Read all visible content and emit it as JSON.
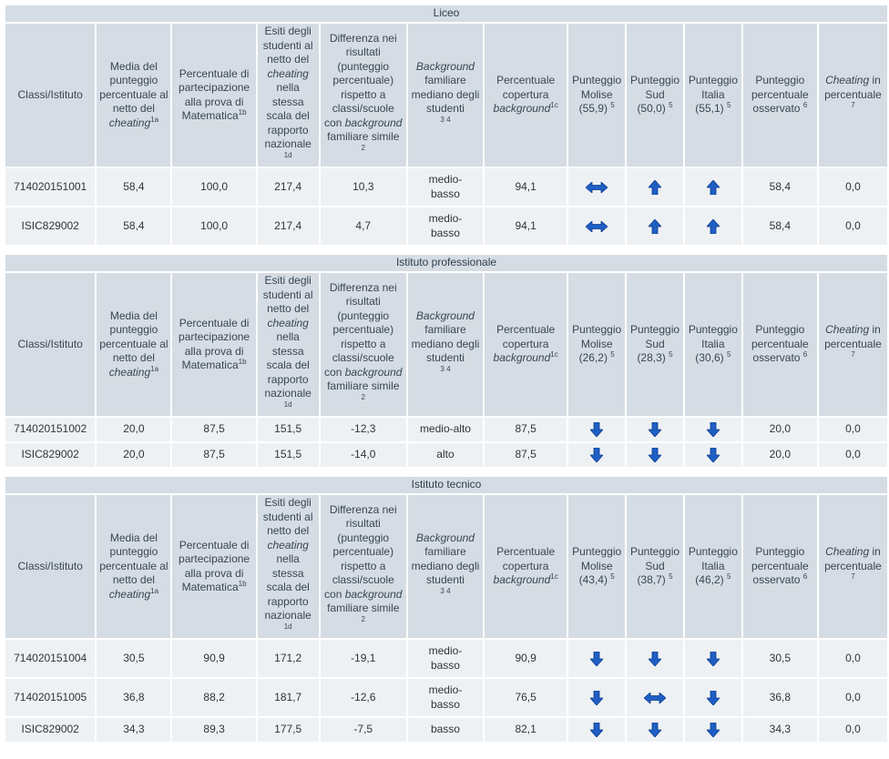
{
  "col_headers": [
    "Classi/Istituto",
    [
      "Media del punteggio percentuale al netto del ",
      "cheating",
      "1a"
    ],
    [
      "Percentuale di partecipazione alla prova di Matematica",
      "",
      "1b"
    ],
    [
      "Esiti degli studenti al netto del ",
      "cheating",
      " nella stessa scala del rapporto nazionale",
      "1d"
    ],
    [
      "Differenza nei risultati (punteggio percentuale) rispetto a classi/scuole con ",
      "background",
      " familiare simile",
      "2"
    ],
    [
      "Background",
      " familiare mediano degli studenti",
      "3 4"
    ],
    [
      "Percentuale copertura ",
      "background",
      "1c"
    ],
    "Punteggio Molise",
    "Punteggio Sud",
    "Punteggio Italia",
    [
      "Punteggio percentuale osservato",
      "6"
    ],
    [
      "Cheating",
      " in percentuale",
      "7"
    ]
  ],
  "footnote_5": "5",
  "sections": [
    {
      "title": "Liceo",
      "molise": "(55,9)",
      "sud": "(50,0)",
      "italia": "(55,1)",
      "rows": [
        {
          "cls": "714020151001",
          "media": "58,4",
          "part": "100,0",
          "esiti": "217,4",
          "diff": "10,3",
          "bg": "medio-basso",
          "cop": "94,1",
          "m": "both",
          "s": "up",
          "i": "up",
          "oss": "58,4",
          "cheat": "0,0"
        },
        {
          "cls": "ISIC829002",
          "media": "58,4",
          "part": "100,0",
          "esiti": "217,4",
          "diff": "4,7",
          "bg": "medio-basso",
          "cop": "94,1",
          "m": "both",
          "s": "up",
          "i": "up",
          "oss": "58,4",
          "cheat": "0,0"
        }
      ]
    },
    {
      "title": "Istituto professionale",
      "molise": "(26,2)",
      "sud": "(28,3)",
      "italia": "(30,6)",
      "rows": [
        {
          "cls": "714020151002",
          "media": "20,0",
          "part": "87,5",
          "esiti": "151,5",
          "diff": "-12,3",
          "bg": "medio-alto",
          "cop": "87,5",
          "m": "down",
          "s": "down",
          "i": "down",
          "oss": "20,0",
          "cheat": "0,0"
        },
        {
          "cls": "ISIC829002",
          "media": "20,0",
          "part": "87,5",
          "esiti": "151,5",
          "diff": "-14,0",
          "bg": "alto",
          "cop": "87,5",
          "m": "down",
          "s": "down",
          "i": "down",
          "oss": "20,0",
          "cheat": "0,0"
        }
      ]
    },
    {
      "title": "Istituto tecnico",
      "molise": "(43,4)",
      "sud": "(38,7)",
      "italia": "(46,2)",
      "rows": [
        {
          "cls": "714020151004",
          "media": "30,5",
          "part": "90,9",
          "esiti": "171,2",
          "diff": "-19,1",
          "bg": "medio-basso",
          "cop": "90,9",
          "m": "down",
          "s": "down",
          "i": "down",
          "oss": "30,5",
          "cheat": "0,0"
        },
        {
          "cls": "714020151005",
          "media": "36,8",
          "part": "88,2",
          "esiti": "181,7",
          "diff": "-12,6",
          "bg": "medio-basso",
          "cop": "76,5",
          "m": "down",
          "s": "both",
          "i": "down",
          "oss": "36,8",
          "cheat": "0,0"
        },
        {
          "cls": "ISIC829002",
          "media": "34,3",
          "part": "89,3",
          "esiti": "177,5",
          "diff": "-7,5",
          "bg": "basso",
          "cop": "82,1",
          "m": "down",
          "s": "down",
          "i": "down",
          "oss": "34,3",
          "cheat": "0,0"
        }
      ]
    }
  ],
  "icons": {
    "up": "arrow-up-icon",
    "down": "arrow-down-icon",
    "both": "arrow-left-right-icon"
  },
  "colors": {
    "header_bg": "#d5dce3",
    "cell_bg": "#eef1f4",
    "arrow": "#1f5fc4"
  }
}
